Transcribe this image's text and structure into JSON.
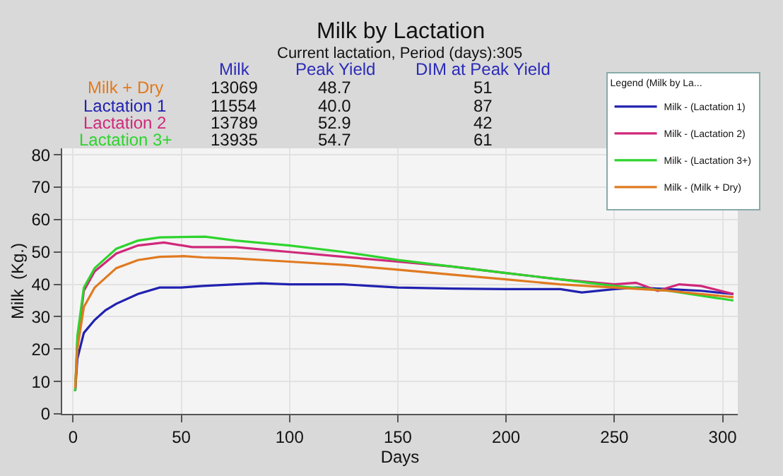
{
  "chart_data": {
    "type": "line",
    "title": "Milk by Lactation",
    "subtitle": "Current lactation, Period (days):305",
    "xlabel": "Days",
    "ylabel": "Milk  (Kg.)",
    "xlim": [
      -5,
      307
    ],
    "xticks": [
      0,
      50,
      100,
      150,
      200,
      250,
      300
    ],
    "ylim": [
      0,
      82
    ],
    "yticks": [
      0,
      10,
      20,
      30,
      40,
      50,
      60,
      70,
      80
    ],
    "grid": true,
    "legend": "top right",
    "legend_title": "Legend (Milk by La...",
    "marker": "none",
    "line_style": "solid",
    "annotations": [
      "Milk",
      "Peak Yield",
      "DIM at Peak Yield",
      "Milk + Dry",
      "13069",
      "48.7",
      "51",
      "Lactation 1",
      "11554",
      "40.0",
      "87",
      "Lactation 2",
      "13789",
      "52.9",
      "42",
      "Lactation 3+",
      "13935",
      "54.7",
      "61"
    ],
    "series": [
      {
        "name": "Milk - (Lactation 1)",
        "color": "#2121b0",
        "x": [
          1,
          2,
          5,
          10,
          15,
          20,
          30,
          40,
          50,
          60,
          75,
          87,
          100,
          125,
          150,
          175,
          200,
          225,
          235,
          250,
          260,
          275,
          290,
          305
        ],
        "values": [
          7,
          17,
          25,
          29,
          32,
          34,
          37,
          39,
          39,
          39.5,
          40,
          40.3,
          40,
          40,
          39,
          38.7,
          38.5,
          38.5,
          37.5,
          38.5,
          39,
          38.5,
          38,
          37
        ]
      },
      {
        "name": "Milk - (Lactation 2)",
        "color": "#d0287a",
        "x": [
          1,
          2,
          5,
          10,
          20,
          30,
          42,
          55,
          75,
          100,
          125,
          150,
          175,
          200,
          225,
          250,
          260,
          270,
          280,
          290,
          305
        ],
        "values": [
          7,
          22,
          38,
          44,
          49.5,
          52,
          52.9,
          51.5,
          51.5,
          50,
          48.5,
          47,
          45.5,
          43.5,
          41.5,
          40,
          40.5,
          38,
          40,
          39.5,
          37
        ]
      },
      {
        "name": "Milk - (Lactation 3+)",
        "color": "#2ed42e",
        "x": [
          1,
          2,
          5,
          10,
          20,
          30,
          40,
          61,
          75,
          100,
          125,
          150,
          175,
          200,
          225,
          250,
          275,
          290,
          305
        ],
        "values": [
          7,
          24,
          39,
          45,
          51,
          53.5,
          54.5,
          54.7,
          53.5,
          52,
          50,
          47.5,
          45.5,
          43.5,
          41.5,
          39.5,
          38,
          36.5,
          35
        ]
      },
      {
        "name": "Milk - (Milk + Dry)",
        "color": "#e07a20",
        "x": [
          1,
          2,
          5,
          10,
          20,
          30,
          40,
          51,
          60,
          75,
          100,
          125,
          150,
          175,
          200,
          225,
          250,
          275,
          305
        ],
        "values": [
          8,
          20,
          33,
          39,
          45,
          47.5,
          48.5,
          48.7,
          48.3,
          48,
          47,
          46,
          44.5,
          43,
          41.5,
          40,
          39,
          38,
          36
        ]
      }
    ]
  }
}
